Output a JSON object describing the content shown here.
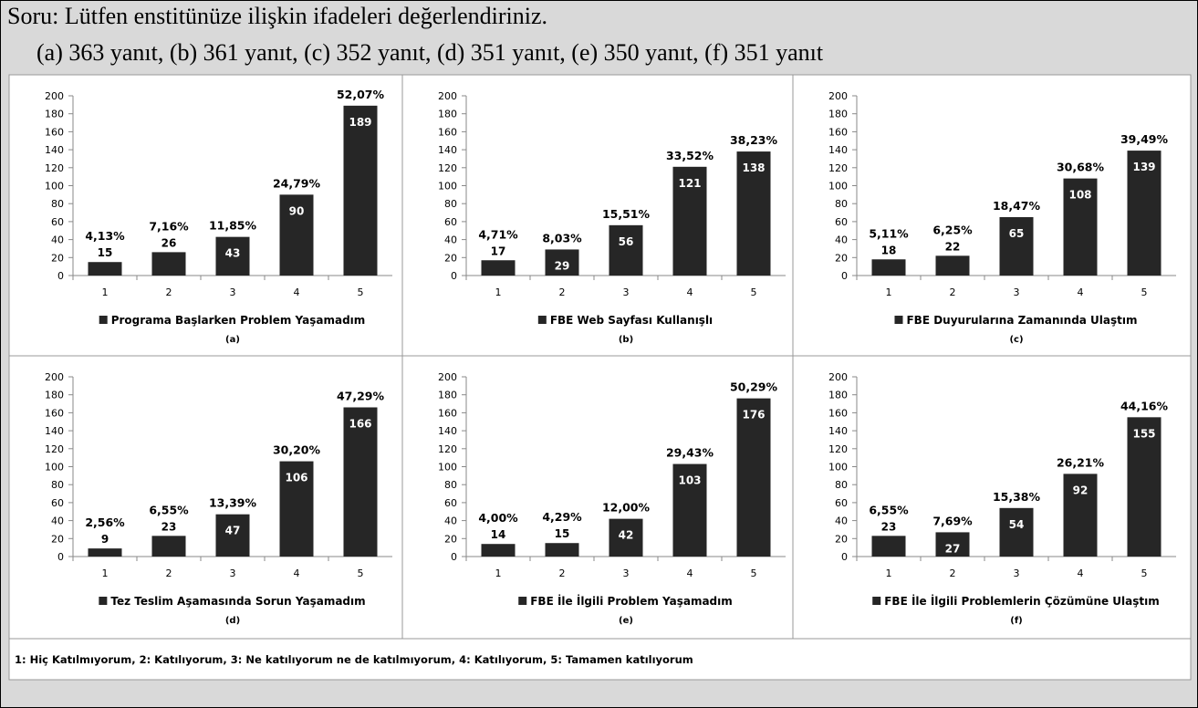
{
  "header": {
    "question": "Soru: Lütfen enstitünüze ilişkin ifadeleri değerlendiriniz.",
    "counts": "(a) 363 yanıt, (b) 361 yanıt, (c) 352 yanıt, (d) 351 yanıt, (e) 350 yanıt, (f) 351 yanıt"
  },
  "chart_data": [
    {
      "type": "bar",
      "caption": "(a)",
      "categories": [
        "1",
        "2",
        "3",
        "4",
        "5"
      ],
      "series": [
        {
          "name": "Programa Başlarken Problem Yaşamadım",
          "color": "#262626",
          "values": [
            15,
            26,
            43,
            90,
            189
          ],
          "percent_labels": [
            "4,13%",
            "7,16%",
            "11,85%",
            "24,79%",
            "52,07%"
          ]
        }
      ],
      "ylim": [
        0,
        200
      ],
      "yticks": [
        0,
        20,
        40,
        60,
        80,
        100,
        120,
        140,
        160,
        180,
        200
      ]
    },
    {
      "type": "bar",
      "caption": "(b)",
      "categories": [
        "1",
        "2",
        "3",
        "4",
        "5"
      ],
      "series": [
        {
          "name": "FBE Web Sayfası Kullanışlı",
          "color": "#262626",
          "values": [
            17,
            29,
            56,
            121,
            138
          ],
          "percent_labels": [
            "4,71%",
            "8,03%",
            "15,51%",
            "33,52%",
            "38,23%"
          ]
        }
      ],
      "ylim": [
        0,
        200
      ],
      "yticks": [
        0,
        20,
        40,
        60,
        80,
        100,
        120,
        140,
        160,
        180,
        200
      ]
    },
    {
      "type": "bar",
      "caption": "(c)",
      "categories": [
        "1",
        "2",
        "3",
        "4",
        "5"
      ],
      "series": [
        {
          "name": "FBE Duyurularına Zamanında Ulaştım",
          "color": "#262626",
          "values": [
            18,
            22,
            65,
            108,
            139
          ],
          "percent_labels": [
            "5,11%",
            "6,25%",
            "18,47%",
            "30,68%",
            "39,49%"
          ]
        }
      ],
      "ylim": [
        0,
        200
      ],
      "yticks": [
        0,
        20,
        40,
        60,
        80,
        100,
        120,
        140,
        160,
        180,
        200
      ]
    },
    {
      "type": "bar",
      "caption": "(d)",
      "categories": [
        "1",
        "2",
        "3",
        "4",
        "5"
      ],
      "series": [
        {
          "name": "Tez Teslim Aşamasında Sorun Yaşamadım",
          "color": "#262626",
          "values": [
            9,
            23,
            47,
            106,
            166
          ],
          "percent_labels": [
            "2,56%",
            "6,55%",
            "13,39%",
            "30,20%",
            "47,29%"
          ]
        }
      ],
      "ylim": [
        0,
        200
      ],
      "yticks": [
        0,
        20,
        40,
        60,
        80,
        100,
        120,
        140,
        160,
        180,
        200
      ]
    },
    {
      "type": "bar",
      "caption": "(e)",
      "categories": [
        "1",
        "2",
        "3",
        "4",
        "5"
      ],
      "series": [
        {
          "name": "FBE İle İlgili Problem Yaşamadım",
          "color": "#262626",
          "values": [
            14,
            15,
            42,
            103,
            176
          ],
          "percent_labels": [
            "4,00%",
            "4,29%",
            "12,00%",
            "29,43%",
            "50,29%"
          ]
        }
      ],
      "ylim": [
        0,
        200
      ],
      "yticks": [
        0,
        20,
        40,
        60,
        80,
        100,
        120,
        140,
        160,
        180,
        200
      ]
    },
    {
      "type": "bar",
      "caption": "(f)",
      "categories": [
        "1",
        "2",
        "3",
        "4",
        "5"
      ],
      "series": [
        {
          "name": "FBE İle İlgili Problemlerin Çözümüne Ulaştım",
          "color": "#262626",
          "values": [
            23,
            27,
            54,
            92,
            155
          ],
          "percent_labels": [
            "6,55%",
            "7,69%",
            "15,38%",
            "26,21%",
            "44,16%"
          ]
        }
      ],
      "ylim": [
        0,
        200
      ],
      "yticks": [
        0,
        20,
        40,
        60,
        80,
        100,
        120,
        140,
        160,
        180,
        200
      ]
    }
  ],
  "footer": "1: Hiç Katılmıyorum,  2: Katılıyorum, 3: Ne katılıyorum ne de katılmıyorum, 4: Katılıyorum, 5: Tamamen katılıyorum"
}
